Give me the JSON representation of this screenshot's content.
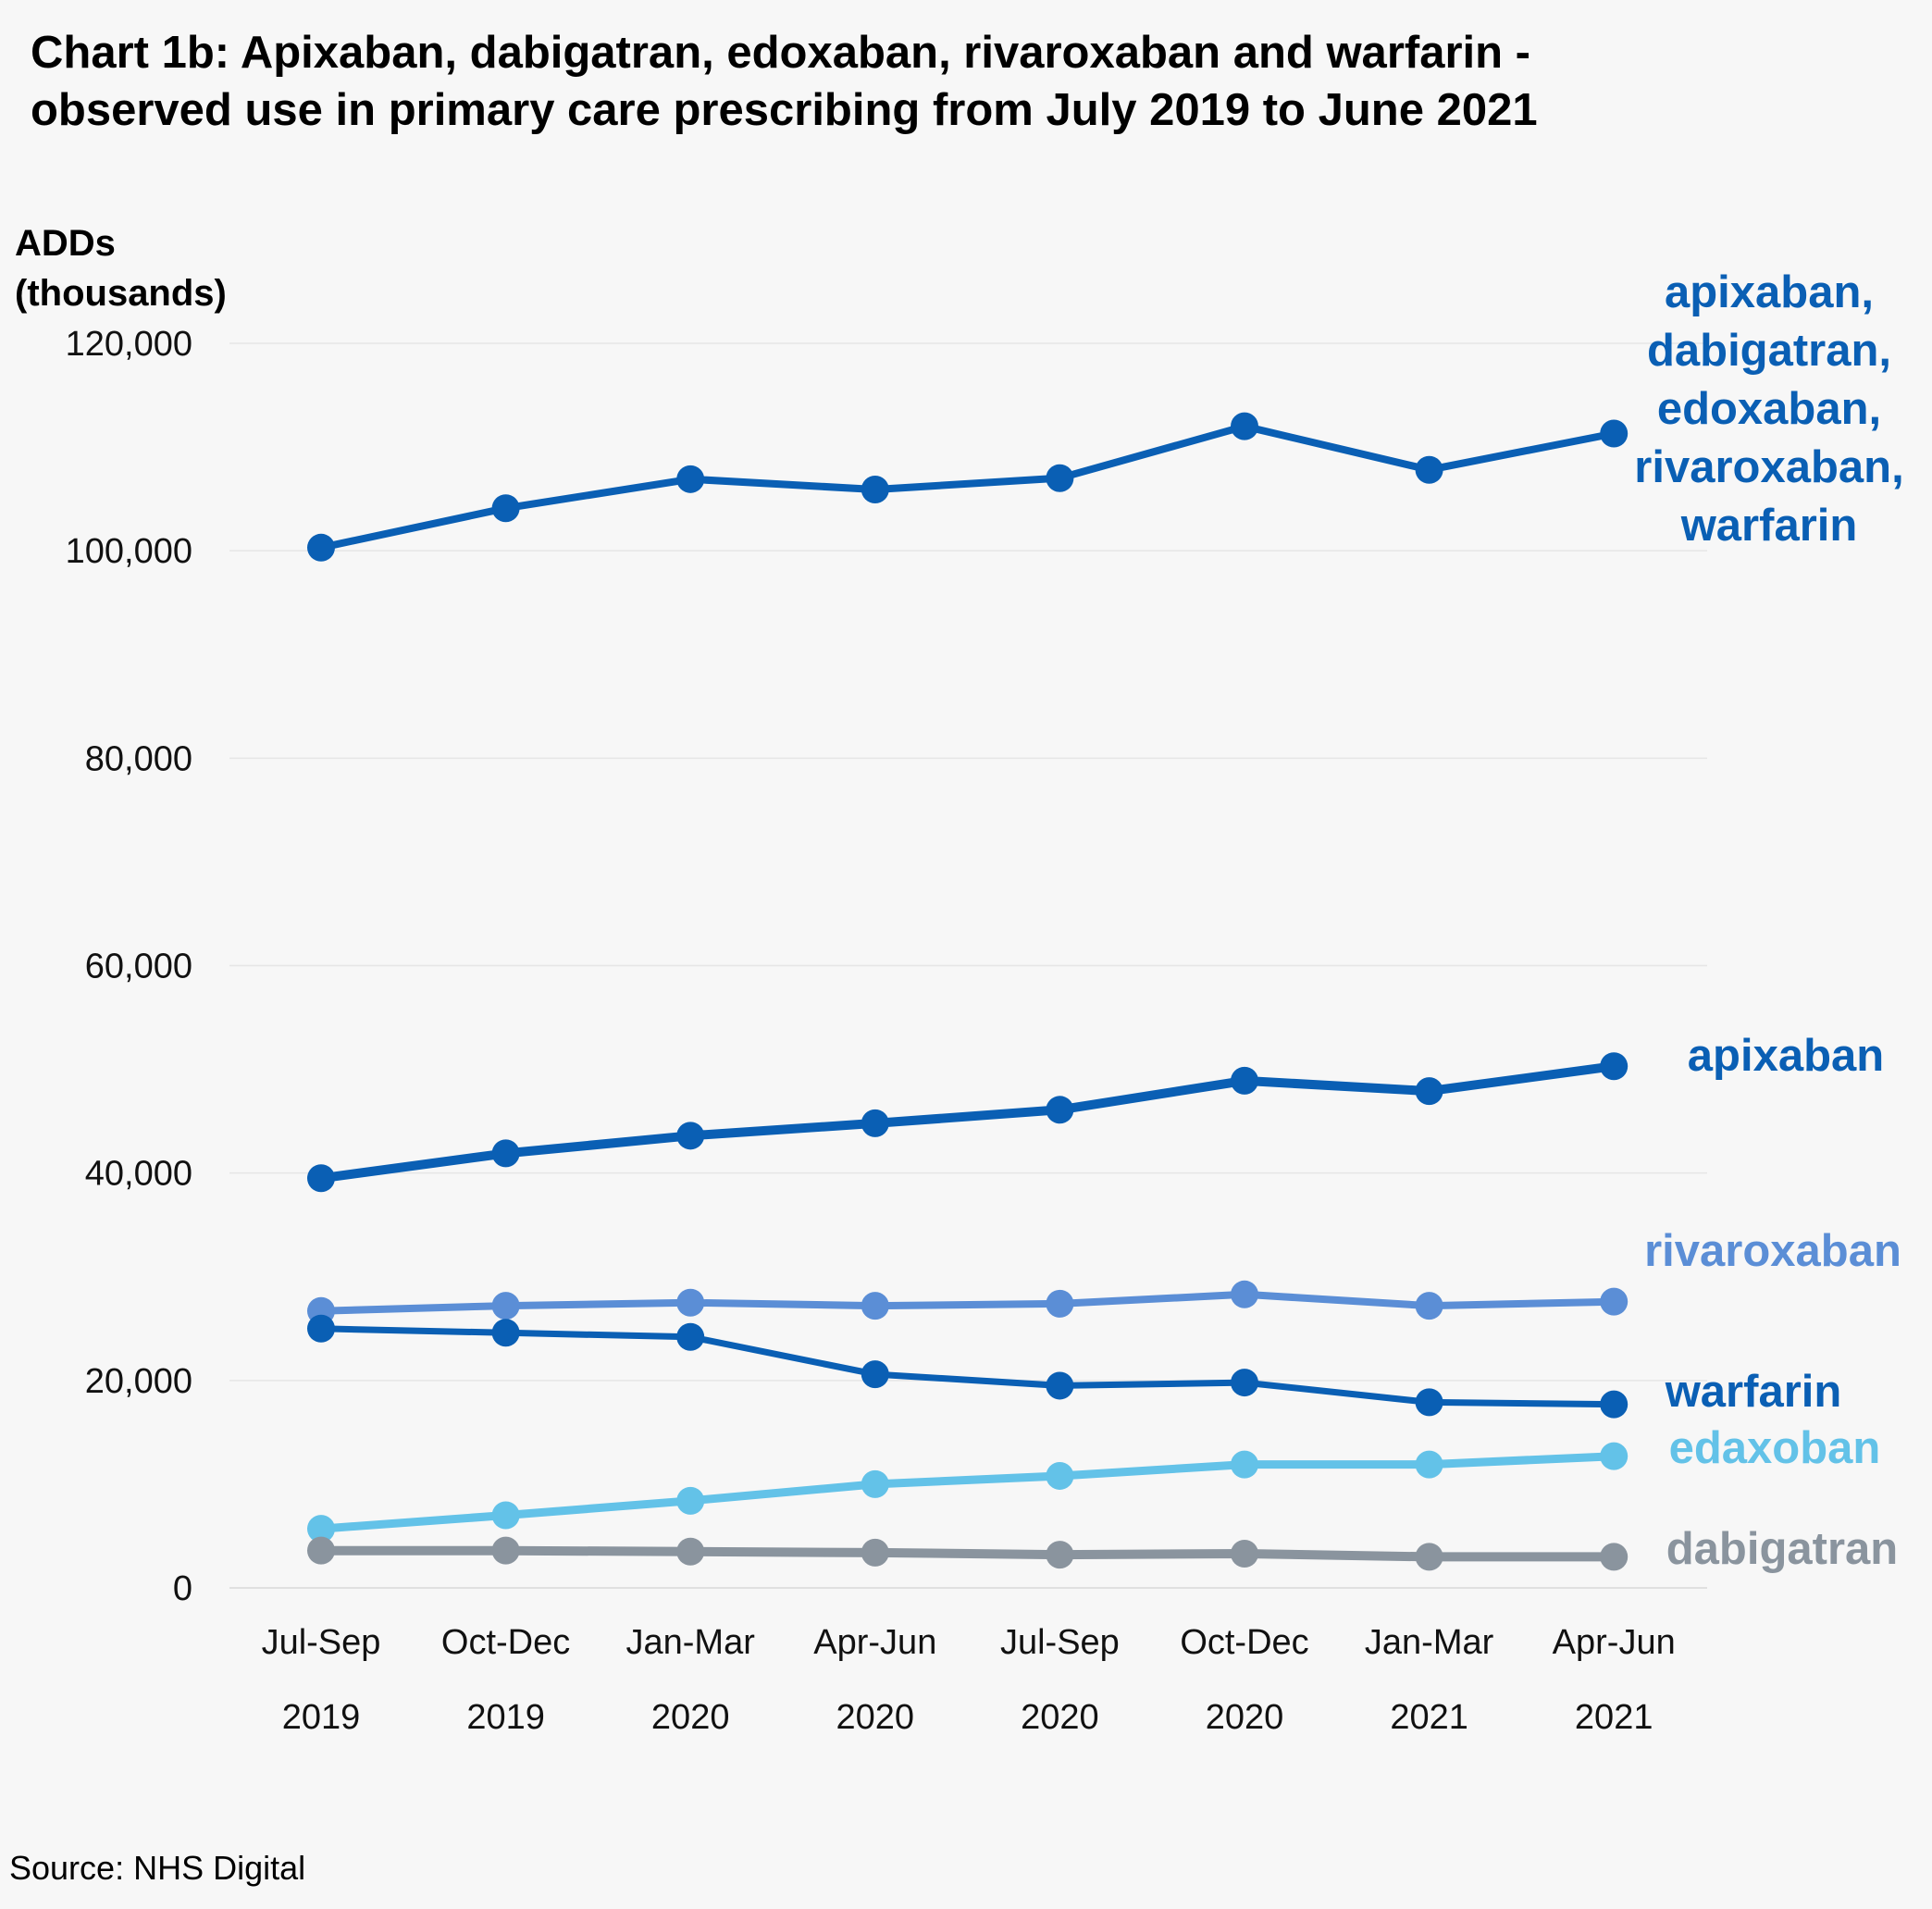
{
  "chart_data": {
    "type": "line",
    "title_lines": [
      "Chart 1b: Apixaban, dabigatran, edoxaban, rivaroxaban and warfarin -",
      "observed use in primary care prescribing from July 2019 to June 2021"
    ],
    "ylabel_lines": [
      "ADDs",
      "(thousands)"
    ],
    "xlabel": "",
    "categories": [
      [
        "Jul-Sep",
        "2019"
      ],
      [
        "Oct-Dec",
        "2019"
      ],
      [
        "Jan-Mar",
        "2020"
      ],
      [
        "Apr-Jun",
        "2020"
      ],
      [
        "Jul-Sep",
        "2020"
      ],
      [
        "Oct-Dec",
        "2020"
      ],
      [
        "Jan-Mar",
        "2021"
      ],
      [
        "Apr-Jun",
        "2021"
      ]
    ],
    "ylim": [
      0,
      120000
    ],
    "yticks": [
      0,
      20000,
      40000,
      60000,
      80000,
      100000,
      120000
    ],
    "ytick_labels": [
      "0",
      "20,000",
      "40,000",
      "60,000",
      "80,000",
      "100,000",
      "120,000"
    ],
    "grid": true,
    "legend": "direct labels at right end of each line",
    "series": [
      {
        "name": "apixaban, dabigatran, edoxaban, rivaroxaban, warfarin",
        "label_lines": [
          "apixaban,",
          "dabigatran,",
          "edoxaban,",
          "rivaroxaban,",
          "warfarin"
        ],
        "color": "#0a5fb4",
        "values": [
          100300,
          104100,
          106900,
          105900,
          107000,
          112000,
          107800,
          111300
        ]
      },
      {
        "name": "apixaban",
        "label_lines": [
          "apixaban"
        ],
        "color": "#0a5fb4",
        "values": [
          39500,
          41900,
          43600,
          44800,
          46100,
          48900,
          47900,
          50300
        ]
      },
      {
        "name": "rivaroxaban",
        "label_lines": [
          "rivaroxaban"
        ],
        "color": "#5b8ed6",
        "values": [
          26700,
          27200,
          27500,
          27200,
          27400,
          28300,
          27200,
          27600
        ]
      },
      {
        "name": "warfarin",
        "label_lines": [
          "warfarin"
        ],
        "color": "#0a5fb4",
        "values": [
          25000,
          24600,
          24200,
          20600,
          19500,
          19800,
          17900,
          17700
        ]
      },
      {
        "name": "edaxoban",
        "label_lines": [
          "edaxoban"
        ],
        "color": "#63c2e8",
        "values": [
          5700,
          7000,
          8400,
          10000,
          10800,
          11900,
          11900,
          12700
        ]
      },
      {
        "name": "dabigatran",
        "label_lines": [
          "dabigatran"
        ],
        "color": "#8a949e",
        "values": [
          3600,
          3600,
          3500,
          3400,
          3200,
          3300,
          3000,
          3000
        ]
      }
    ]
  },
  "source": "Source: NHS Digital"
}
